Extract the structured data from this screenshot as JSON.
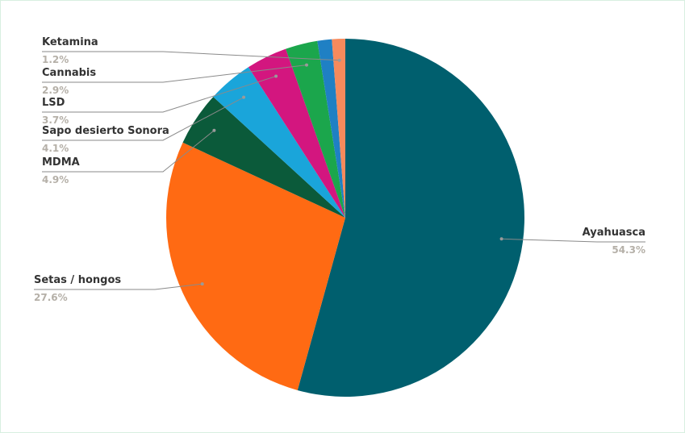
{
  "chart_data": {
    "type": "pie",
    "categories": [
      "Ayahuasca",
      "Setas / hongos",
      "MDMA",
      "Sapo desierto Sonora",
      "LSD",
      "Cannabis",
      null,
      "Ketamina"
    ],
    "values": [
      54.3,
      27.6,
      4.9,
      4.1,
      3.7,
      2.9,
      1.3,
      1.2
    ],
    "value_labels": [
      "54.3%",
      "27.6%",
      "4.9%",
      "4.1%",
      "3.7%",
      "2.9%",
      null,
      "1.2%"
    ],
    "colors": [
      "#005f6e",
      "#ff6a13",
      "#0b5a3a",
      "#1aa5da",
      "#d3167f",
      "#1ba64c",
      "#1f80c4",
      "#f68a5c"
    ]
  }
}
